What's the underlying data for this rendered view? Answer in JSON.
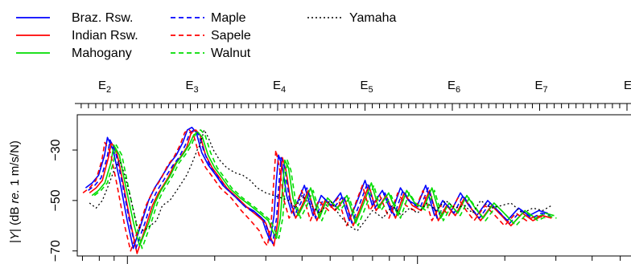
{
  "chart_data": {
    "type": "line",
    "title": "",
    "xlabel": "",
    "ylabel": "|Y| (dB re. 1 m/s/N)",
    "ylabel_parts": [
      "|",
      "Y",
      "| (dB ",
      "re.",
      " 1 m/s/N)"
    ],
    "x_scale": "log",
    "x_unit": "Hz",
    "xlim": [
      70,
      3000
    ],
    "ylim": [
      -72,
      -16
    ],
    "y_ticks": [
      -30,
      -50,
      -70
    ],
    "y_tick_labels": [
      "−30",
      "−50",
      "−70"
    ],
    "top_axis": {
      "note_letter": "E",
      "labels": [
        {
          "letter": "E",
          "sub": "2",
          "freq": 82.41
        },
        {
          "letter": "E",
          "sub": "3",
          "freq": 164.81
        },
        {
          "letter": "E",
          "sub": "4",
          "freq": 329.63
        },
        {
          "letter": "E",
          "sub": "5",
          "freq": 659.26
        },
        {
          "letter": "E",
          "sub": "6",
          "freq": 1318.5
        },
        {
          "letter": "E",
          "sub": "7",
          "freq": 2637.0
        }
      ],
      "edge_label": "E"
    },
    "grid": false,
    "legend": {
      "position": "top-left",
      "entries": [
        {
          "name": "Braz. Rsw.",
          "color": "#0000ff",
          "dash": "solid"
        },
        {
          "name": "Indian Rsw.",
          "color": "#ff0000",
          "dash": "solid"
        },
        {
          "name": "Mahogany",
          "color": "#00dd00",
          "dash": "solid"
        },
        {
          "name": "Maple",
          "color": "#0000ff",
          "dash": "dashed"
        },
        {
          "name": "Sapele",
          "color": "#ff0000",
          "dash": "dashed"
        },
        {
          "name": "Walnut",
          "color": "#00dd00",
          "dash": "dashed"
        },
        {
          "name": "Yamaha",
          "color": "#000000",
          "dash": "dotted"
        }
      ]
    },
    "series": [
      {
        "name": "Braz. Rsw.",
        "color": "#0000ff",
        "dash": "solid",
        "shift": 0.97,
        "x": [
          74,
          78,
          82,
          86,
          88,
          92,
          97,
          103,
          108,
          116,
          122,
          128,
          133,
          138,
          145,
          152,
          160,
          166,
          172,
          178,
          186,
          196,
          208,
          220,
          240,
          260,
          280,
          300,
          310,
          320,
          330,
          336,
          342,
          352,
          365,
          380,
          400,
          420,
          450,
          480,
          520,
          560,
          600,
          640,
          680,
          720,
          780,
          840,
          900,
          960,
          1030,
          1100,
          1180,
          1260,
          1350,
          1450,
          1550,
          1650,
          1800,
          1950,
          2100,
          2300,
          2500,
          2700,
          2900
        ],
        "y": [
          -45,
          -43,
          -40,
          -32,
          -25,
          -30,
          -42,
          -58,
          -69,
          -58,
          -50,
          -45,
          -42,
          -39,
          -35,
          -32,
          -27,
          -22,
          -21,
          -23,
          -31,
          -36,
          -40,
          -44,
          -48,
          -52,
          -54,
          -57,
          -62,
          -66,
          -56,
          -43,
          -32,
          -36,
          -48,
          -55,
          -50,
          -44,
          -56,
          -48,
          -52,
          -47,
          -58,
          -50,
          -42,
          -52,
          -46,
          -55,
          -45,
          -50,
          -52,
          -44,
          -56,
          -50,
          -54,
          -47,
          -52,
          -56,
          -50,
          -54,
          -58,
          -53,
          -56,
          -54,
          -55
        ]
      },
      {
        "name": "Indian Rsw.",
        "color": "#ff0000",
        "dash": "solid",
        "shift": 1.0,
        "x": [
          74,
          78,
          82,
          86,
          88,
          92,
          97,
          103,
          108,
          116,
          122,
          128,
          133,
          138,
          145,
          152,
          160,
          166,
          172,
          178,
          186,
          196,
          208,
          220,
          240,
          260,
          280,
          300,
          310,
          320,
          330,
          336,
          342,
          352,
          365,
          380,
          400,
          420,
          450,
          480,
          520,
          560,
          600,
          640,
          680,
          720,
          780,
          840,
          900,
          960,
          1030,
          1100,
          1180,
          1260,
          1350,
          1450,
          1550,
          1650,
          1800,
          1950,
          2100,
          2300,
          2500,
          2700,
          2900
        ],
        "y": [
          -47,
          -45,
          -42,
          -33,
          -27,
          -31,
          -44,
          -60,
          -71,
          -60,
          -52,
          -47,
          -44,
          -41,
          -36,
          -33,
          -29,
          -23,
          -22,
          -24,
          -32,
          -37,
          -41,
          -45,
          -49,
          -53,
          -56,
          -59,
          -64,
          -68,
          -58,
          -44,
          -33,
          -38,
          -50,
          -57,
          -52,
          -46,
          -58,
          -50,
          -54,
          -49,
          -60,
          -52,
          -44,
          -54,
          -48,
          -57,
          -47,
          -52,
          -54,
          -46,
          -58,
          -52,
          -56,
          -49,
          -54,
          -58,
          -52,
          -56,
          -60,
          -55,
          -58,
          -56,
          -57
        ]
      },
      {
        "name": "Mahogany",
        "color": "#00dd00",
        "dash": "solid",
        "shift": 1.02,
        "x": [
          74,
          78,
          82,
          86,
          88,
          92,
          97,
          103,
          108,
          116,
          122,
          128,
          133,
          138,
          145,
          152,
          160,
          166,
          172,
          178,
          186,
          196,
          208,
          220,
          240,
          260,
          280,
          300,
          310,
          320,
          330,
          336,
          342,
          352,
          365,
          380,
          400,
          420,
          450,
          480,
          520,
          560,
          600,
          640,
          680,
          720,
          780,
          840,
          900,
          960,
          1030,
          1100,
          1180,
          1260,
          1350,
          1450,
          1550,
          1650,
          1800,
          1950,
          2100,
          2300,
          2500,
          2700,
          2900
        ],
        "y": [
          -48,
          -46,
          -43,
          -35,
          -28,
          -32,
          -45,
          -59,
          -68,
          -59,
          -51,
          -46,
          -43,
          -40,
          -35,
          -32,
          -28,
          -24,
          -23,
          -25,
          -32,
          -37,
          -41,
          -45,
          -49,
          -52,
          -55,
          -58,
          -62,
          -65,
          -57,
          -45,
          -34,
          -37,
          -49,
          -56,
          -51,
          -45,
          -57,
          -49,
          -53,
          -48,
          -59,
          -51,
          -43,
          -53,
          -47,
          -56,
          -46,
          -51,
          -53,
          -45,
          -57,
          -51,
          -55,
          -48,
          -53,
          -57,
          -51,
          -55,
          -59,
          -54,
          -57,
          -55,
          -56
        ]
      },
      {
        "name": "Maple",
        "color": "#0000ff",
        "dash": "dashed",
        "shift": 0.99,
        "x": [
          74,
          78,
          82,
          86,
          88,
          92,
          97,
          103,
          108,
          116,
          122,
          128,
          133,
          138,
          145,
          152,
          160,
          166,
          172,
          178,
          186,
          196,
          208,
          220,
          240,
          260,
          280,
          300,
          310,
          320,
          330,
          336,
          342,
          352,
          365,
          380,
          400,
          420,
          450,
          480,
          520,
          560,
          600,
          640,
          680,
          720,
          780,
          840,
          900,
          960,
          1030,
          1100,
          1180,
          1260,
          1350,
          1450,
          1550,
          1650,
          1800,
          1950,
          2100,
          2300,
          2500,
          2700,
          2900
        ],
        "y": [
          -46,
          -44,
          -41,
          -33,
          -26,
          -31,
          -43,
          -59,
          -69,
          -59,
          -51,
          -46,
          -43,
          -40,
          -36,
          -33,
          -28,
          -23,
          -22,
          -24,
          -31,
          -37,
          -41,
          -45,
          -49,
          -53,
          -55,
          -58,
          -63,
          -67,
          -57,
          -44,
          -33,
          -37,
          -49,
          -56,
          -51,
          -45,
          -57,
          -49,
          -53,
          -48,
          -59,
          -51,
          -43,
          -53,
          -47,
          -56,
          -46,
          -51,
          -53,
          -45,
          -57,
          -51,
          -55,
          -48,
          -53,
          -57,
          -51,
          -55,
          -59,
          -54,
          -57,
          -55,
          -56
        ]
      },
      {
        "name": "Sapele",
        "color": "#ff0000",
        "dash": "dashed",
        "shift": 0.95,
        "x": [
          74,
          78,
          82,
          86,
          88,
          92,
          97,
          103,
          108,
          116,
          122,
          128,
          133,
          138,
          145,
          152,
          160,
          166,
          172,
          178,
          186,
          196,
          208,
          220,
          240,
          260,
          280,
          300,
          310,
          320,
          330,
          336,
          342,
          352,
          365,
          380,
          400,
          420,
          450,
          480,
          520,
          560,
          600,
          640,
          680,
          720,
          780,
          840,
          900,
          960,
          1030,
          1100,
          1180,
          1260,
          1350,
          1450,
          1550,
          1650,
          1800,
          1950,
          2100,
          2300,
          2500,
          2700,
          2900
        ],
        "y": [
          -47,
          -45,
          -42,
          -34,
          -27,
          -31,
          -44,
          -60,
          -70,
          -60,
          -52,
          -47,
          -44,
          -41,
          -36,
          -33,
          -28,
          -23,
          -22,
          -24,
          -32,
          -37,
          -41,
          -45,
          -49,
          -54,
          -58,
          -62,
          -66,
          -68,
          -58,
          -43,
          -30,
          -37,
          -50,
          -57,
          -52,
          -46,
          -58,
          -50,
          -54,
          -49,
          -60,
          -52,
          -44,
          -54,
          -48,
          -57,
          -47,
          -52,
          -54,
          -46,
          -58,
          -52,
          -56,
          -49,
          -54,
          -58,
          -52,
          -56,
          -60,
          -55,
          -58,
          -56,
          -57
        ]
      },
      {
        "name": "Walnut",
        "color": "#00dd00",
        "dash": "dashed",
        "shift": 1.04,
        "x": [
          74,
          78,
          82,
          86,
          88,
          92,
          97,
          103,
          108,
          116,
          122,
          128,
          133,
          138,
          145,
          152,
          160,
          166,
          172,
          178,
          186,
          196,
          208,
          220,
          240,
          260,
          280,
          300,
          310,
          320,
          330,
          336,
          342,
          352,
          365,
          380,
          400,
          420,
          450,
          480,
          520,
          560,
          600,
          640,
          680,
          720,
          780,
          840,
          900,
          960,
          1030,
          1100,
          1180,
          1260,
          1350,
          1450,
          1550,
          1650,
          1800,
          1950,
          2100,
          2300,
          2500,
          2700,
          2900
        ],
        "y": [
          -48,
          -46,
          -43,
          -35,
          -28,
          -32,
          -45,
          -59,
          -69,
          -59,
          -51,
          -46,
          -43,
          -40,
          -35,
          -32,
          -28,
          -23,
          -22,
          -24,
          -31,
          -37,
          -41,
          -45,
          -49,
          -52,
          -55,
          -58,
          -62,
          -65,
          -57,
          -45,
          -34,
          -38,
          -50,
          -57,
          -52,
          -46,
          -58,
          -50,
          -54,
          -49,
          -60,
          -52,
          -44,
          -54,
          -48,
          -57,
          -47,
          -52,
          -54,
          -46,
          -58,
          -52,
          -56,
          -49,
          -54,
          -58,
          -52,
          -56,
          -60,
          -55,
          -58,
          -56,
          -57
        ]
      },
      {
        "name": "Yamaha",
        "color": "#000000",
        "dash": "dotted",
        "shift": 1.0,
        "x": [
          74,
          78,
          82,
          86,
          90,
          94,
          98,
          103,
          108,
          114,
          120,
          126,
          132,
          140,
          150,
          160,
          166,
          170,
          174,
          178,
          184,
          190,
          198,
          208,
          220,
          235,
          250,
          265,
          280,
          300,
          320,
          340,
          360,
          380,
          400,
          430,
          460,
          500,
          540,
          580,
          620,
          660,
          700,
          760,
          820,
          880,
          940,
          1000,
          1080,
          1160,
          1250,
          1350,
          1450,
          1550,
          1650,
          1800,
          1950,
          2100,
          2300,
          2500,
          2700,
          2900
        ],
        "y": [
          -51,
          -53,
          -50,
          -44,
          -38,
          -34,
          -40,
          -50,
          -60,
          -62,
          -60,
          -58,
          -52,
          -50,
          -45,
          -40,
          -36,
          -33,
          -30,
          -28,
          -22,
          -25,
          -30,
          -34,
          -37,
          -39,
          -40,
          -42,
          -45,
          -47,
          -48,
          -49,
          -50,
          -53,
          -48,
          -52,
          -55,
          -50,
          -56,
          -60,
          -62,
          -58,
          -54,
          -57,
          -52,
          -56,
          -53,
          -55,
          -51,
          -54,
          -50,
          -53,
          -52,
          -55,
          -50,
          -53,
          -52,
          -51,
          -55,
          -53,
          -54,
          -52
        ]
      }
    ]
  }
}
